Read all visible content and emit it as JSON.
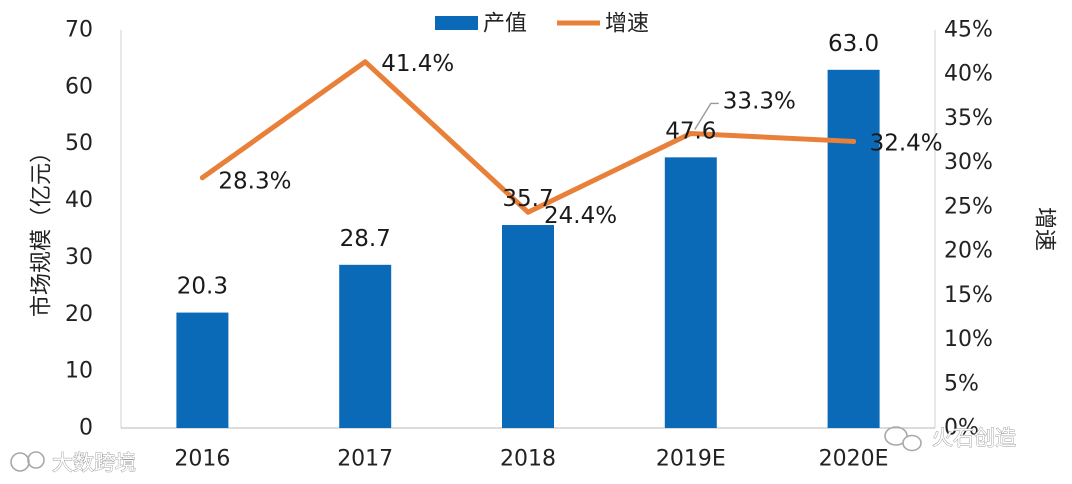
{
  "chart_data": {
    "type": "bar",
    "categories": [
      "2016",
      "2017",
      "2018",
      "2019E",
      "2020E"
    ],
    "series": [
      {
        "name": "产值",
        "type": "bar",
        "axis": "left",
        "values": [
          20.3,
          28.7,
          35.7,
          47.6,
          63.0
        ],
        "labels": [
          "20.3",
          "28.7",
          "35.7",
          "47.6",
          "63.0"
        ],
        "color": "#0a6ab8"
      },
      {
        "name": "增速",
        "type": "line",
        "axis": "right",
        "values": [
          28.3,
          41.4,
          24.4,
          33.3,
          32.4
        ],
        "labels": [
          "28.3%",
          "41.4%",
          "24.4%",
          "33.3%",
          "32.4%"
        ],
        "color": "#e8803a"
      }
    ],
    "ylabel": "市场规模（亿元）",
    "y2label": "增速",
    "ylim": [
      0,
      70
    ],
    "y2lim": [
      0,
      45
    ],
    "yticks": [
      "0",
      "10",
      "20",
      "30",
      "40",
      "50",
      "60",
      "70"
    ],
    "y2ticks": [
      "0%",
      "5%",
      "10%",
      "15%",
      "20%",
      "25%",
      "30%",
      "35%",
      "40%",
      "45%"
    ],
    "legend": "top-center",
    "grid": false
  },
  "watermarks": {
    "left": "大数跨境",
    "right": "火石创造"
  }
}
